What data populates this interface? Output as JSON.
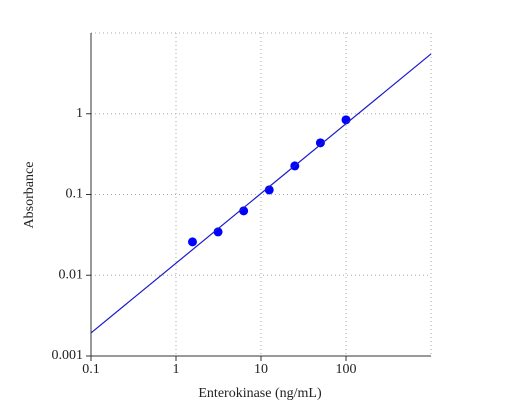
{
  "chart_data": {
    "type": "scatter",
    "x_label": "Enterokinase (ng/mL)",
    "y_label": "Absorbance",
    "xscale": "log",
    "yscale": "log",
    "xlim": [
      0.1,
      1000
    ],
    "ylim": [
      0.001,
      10
    ],
    "xticks": [
      0.1,
      1,
      10,
      100
    ],
    "yticks": [
      0.001,
      0.01,
      0.1,
      1
    ],
    "grid": true,
    "series": [
      {
        "type": "scatter",
        "color": "#0000ff",
        "x": [
          1.5625,
          3.125,
          6.25,
          12.5,
          25,
          50,
          100
        ],
        "values": [
          0.0259,
          0.0344,
          0.0627,
          0.114,
          0.226,
          0.436,
          0.84
        ]
      },
      {
        "type": "line",
        "color": "#1a1acc",
        "x": [
          0.1,
          1000
        ],
        "values": [
          0.00193,
          5.5
        ]
      }
    ]
  }
}
